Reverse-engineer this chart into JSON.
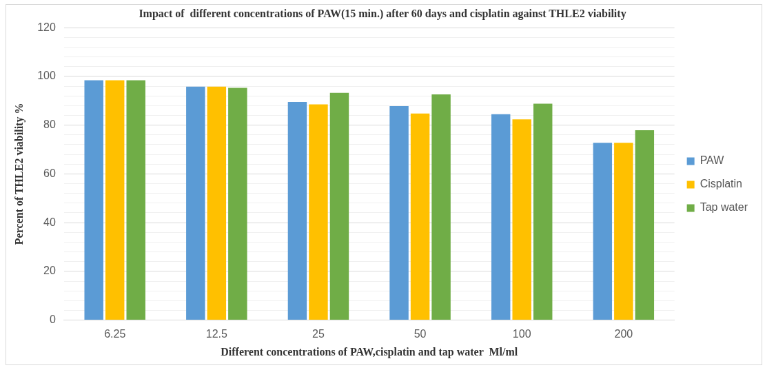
{
  "chart_data": {
    "type": "bar",
    "title": "Impact of  different concentrations of PAW(15 min.) after 60 days and cisplatin against THLE2 viability",
    "xlabel": "Different concentrations of PAW,cisplatin and tap water  Ml/ml",
    "ylabel": "Percent of THLE2 viability %",
    "categories": [
      "6.25",
      "12.5",
      "25",
      "50",
      "100",
      "200"
    ],
    "series": [
      {
        "name": "PAW",
        "color": "#5b9bd5",
        "values": [
          98.4,
          95.8,
          89.5,
          87.8,
          84.5,
          72.8
        ]
      },
      {
        "name": "Cisplatin",
        "color": "#ffc000",
        "values": [
          98.4,
          95.8,
          88.5,
          84.8,
          82.4,
          72.8
        ]
      },
      {
        "name": "Tap water",
        "color": "#70ad47",
        "values": [
          98.4,
          95.3,
          93.3,
          92.6,
          88.8,
          77.9
        ]
      }
    ],
    "ylim": [
      0,
      120
    ],
    "yticks": [
      0,
      {
        "value": 4,
        "label": null
      },
      {
        "value": 8,
        "label": null
      },
      {
        "value": 12,
        "label": null
      },
      {
        "value": 16,
        "label": null
      },
      20,
      {
        "value": 24,
        "label": null
      },
      {
        "value": 28,
        "label": null
      },
      {
        "value": 32,
        "label": null
      },
      {
        "value": 36,
        "label": null
      },
      40,
      {
        "value": 44,
        "label": null
      },
      {
        "value": 48,
        "label": null
      },
      {
        "value": 52,
        "label": null
      },
      {
        "value": 56,
        "label": null
      },
      60,
      {
        "value": 64,
        "label": null
      },
      {
        "value": 68,
        "label": null
      },
      {
        "value": 72,
        "label": null
      },
      {
        "value": 76,
        "label": null
      },
      80,
      {
        "value": 84,
        "label": null
      },
      {
        "value": 88,
        "label": null
      },
      {
        "value": 92,
        "label": null
      },
      {
        "value": 96,
        "label": null
      },
      100,
      {
        "value": 104,
        "label": null
      },
      {
        "value": 108,
        "label": null
      },
      {
        "value": 112,
        "label": null
      },
      {
        "value": 116,
        "label": null
      },
      120
    ],
    "grid": "y",
    "legend": "right"
  }
}
